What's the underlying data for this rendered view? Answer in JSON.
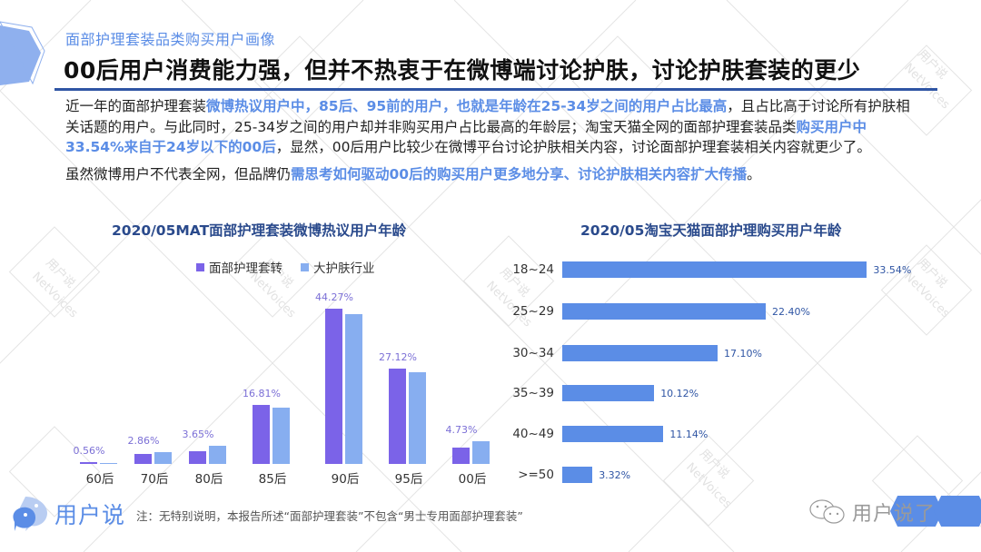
{
  "header": {
    "subtitle": "面部护理套装品类购买用户画像",
    "title": "00后用户消费能力强，但并不热衷于在微博端讨论护肤，讨论护肤套装的更少"
  },
  "body": {
    "p1_parts": [
      {
        "text": "近一年的面部护理套装",
        "hl": false
      },
      {
        "text": "微博热议用户中，85后、95前的用户，也就是年龄在25-34岁之间的用户占比最高",
        "hl": true
      },
      {
        "text": "，且占比高于讨论所有护肤相关话题的用户。与此同时，25-34岁之间的用户却并非购买用户占比最高的年龄层；淘宝天猫全网的面部护理套装品类",
        "hl": false
      },
      {
        "text": "购买用户中33.54%来自于24岁以下的00后",
        "hl": true
      },
      {
        "text": "，显然，00后用户比较少在微博平台讨论护肤相关内容，讨论面部护理套装相关内容就更少了。",
        "hl": false
      }
    ],
    "p2_parts": [
      {
        "text": "虽然微博用户不代表全网，但品牌仍",
        "hl": false
      },
      {
        "text": "需思考如何驱动00后的购买用户更多地分享、讨论护肤相关内容扩大传播",
        "hl": true
      },
      {
        "text": "。",
        "hl": false
      }
    ]
  },
  "colors": {
    "accent": "#5b8de6",
    "title_rule": "#2f55a4",
    "series_facial": "#7b63e8",
    "series_industry": "#87aef0",
    "hbar": "#5b8de6"
  },
  "chart_data": [
    {
      "type": "bar",
      "title": "2020/05MAT面部护理套装微博热议用户年龄",
      "categories": [
        "60后",
        "70后",
        "80后",
        "85后",
        "90后",
        "95后",
        "00后"
      ],
      "series": [
        {
          "name": "面部护理套转",
          "values": [
            0.56,
            2.86,
            3.65,
            16.81,
            44.27,
            27.12,
            4.73
          ],
          "labels": [
            "0.56%",
            "2.86%",
            "3.65%",
            "16.81%",
            "44.27%",
            "27.12%",
            "4.73%"
          ]
        },
        {
          "name": "大护肤行业",
          "values": [
            0.3,
            3.4,
            5.2,
            16.1,
            42.7,
            26.2,
            6.5
          ]
        }
      ],
      "xlabel": "",
      "ylabel": "",
      "ylim": [
        0,
        50
      ],
      "grid": false,
      "legend_position": "top"
    },
    {
      "type": "bar",
      "orientation": "horizontal",
      "title": "2020/05淘宝天猫面部护理购买用户年龄",
      "categories": [
        "18~24",
        "25~29",
        "30~34",
        "35~39",
        "40~49",
        ">=50"
      ],
      "values": [
        33.54,
        22.4,
        17.1,
        10.12,
        11.14,
        3.32
      ],
      "labels": [
        "33.54%",
        "22.40%",
        "17.10%",
        "10.12%",
        "11.14%",
        "3.32%"
      ],
      "xlabel": "",
      "ylabel": "",
      "grid": false
    }
  ],
  "footer": {
    "logo_text": "用户说",
    "logo_icon": "chat-bubbles-logo-icon",
    "note": "注：无特别说明，本报告所述“面部护理套装”不包含“男士专用面部护理套装”",
    "wechat_icon": "wechat-icon",
    "wechat_text": "用户说了"
  },
  "watermark": {
    "line1": "用户说",
    "line2": "NetVoices"
  }
}
